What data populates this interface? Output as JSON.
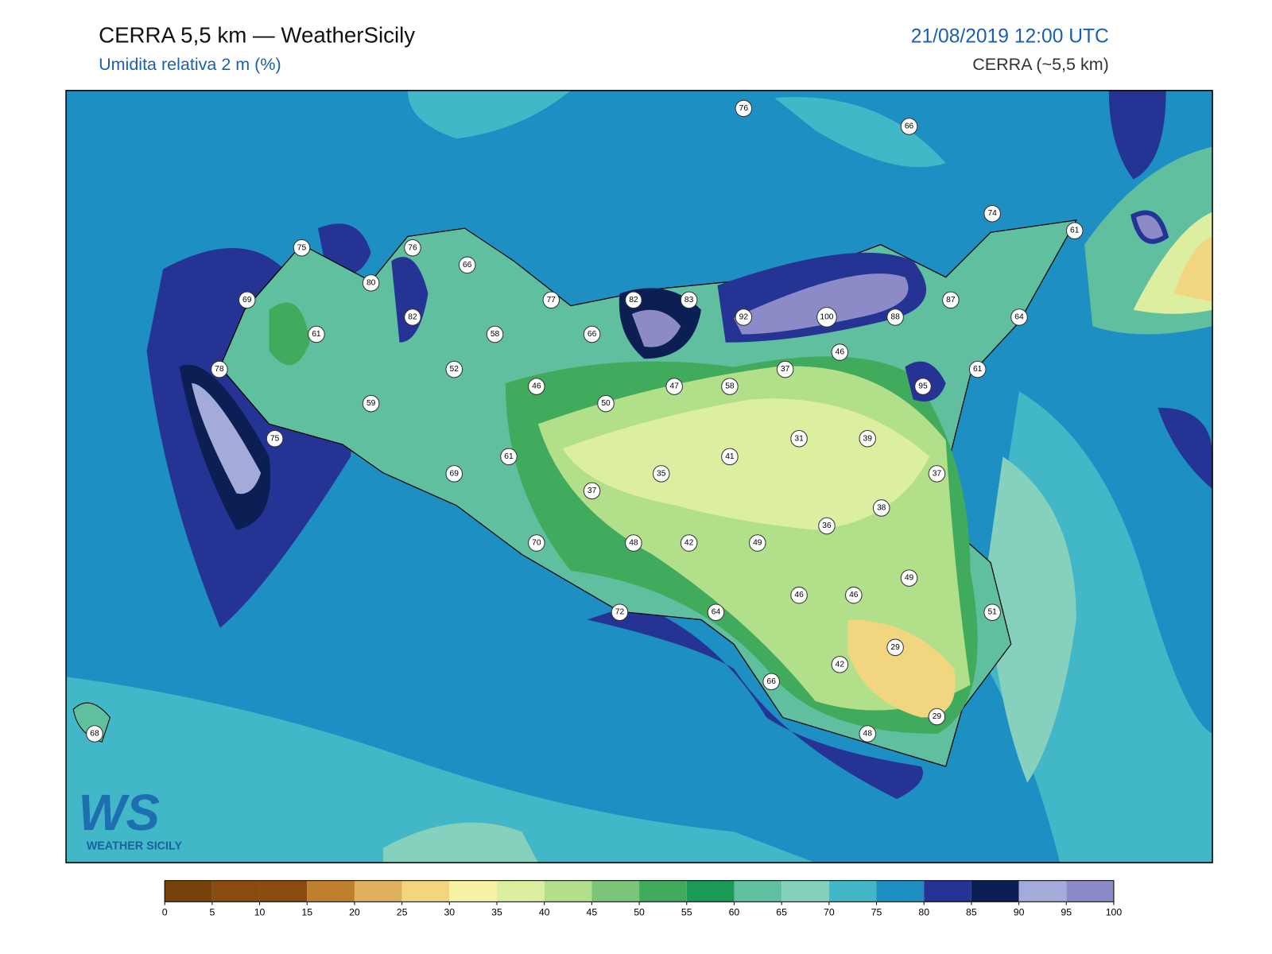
{
  "header": {
    "title": "CERRA 5,5 km — WeatherSicily",
    "subtitle": "Umidita relativa 2 m (%)",
    "datetime": "21/08/2019 12:00 UTC",
    "model": "CERRA (~5,5 km)"
  },
  "stations": [
    76,
    66,
    74,
    61,
    75,
    76,
    66,
    80,
    69,
    77,
    82,
    83,
    87,
    82,
    92,
    100,
    88,
    64,
    61,
    58,
    66,
    46,
    78,
    52,
    37,
    61,
    46,
    47,
    58,
    95,
    59,
    50,
    75,
    31,
    39,
    41,
    61,
    35,
    69,
    37,
    37,
    38,
    36,
    70,
    48,
    42,
    49,
    49,
    46,
    46,
    72,
    64,
    51,
    29,
    42,
    66,
    29,
    68,
    48
  ],
  "colorbar": {
    "ticks": [
      0,
      5,
      10,
      15,
      20,
      25,
      30,
      35,
      40,
      45,
      50,
      55,
      60,
      65,
      70,
      75,
      80,
      85,
      90,
      95,
      100
    ],
    "colors": [
      "#774209",
      "#8a4c0e",
      "#8a4c0e",
      "#bf7f2d",
      "#dfb15f",
      "#f1d67f",
      "#f6f3a6",
      "#dcee9f",
      "#b2df8a",
      "#7cc478",
      "#41ab5d",
      "#1b9a55",
      "#5fbf9f",
      "#85d1bd",
      "#42b7c8",
      "#1e8fc3",
      "#253494",
      "#0b1f55",
      "#a4abd9",
      "#8c8bc8"
    ]
  },
  "logo": {
    "mark": "WS",
    "name": "WEATHER SICILY"
  }
}
